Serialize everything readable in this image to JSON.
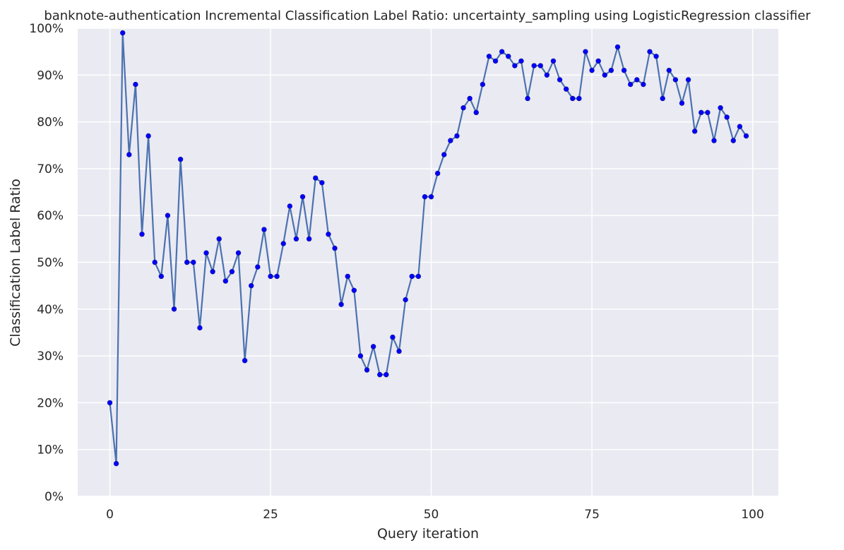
{
  "chart_data": {
    "type": "line",
    "title": "banknote-authentication Incremental Classification Label Ratio: uncertainty_sampling using LogisticRegression classifier",
    "xlabel": "Query iteration",
    "ylabel": "Classification Label Ratio",
    "xlim": [
      -5,
      104
    ],
    "ylim": [
      0,
      100
    ],
    "x_ticks": [
      0,
      25,
      50,
      75,
      100
    ],
    "y_ticks": [
      0,
      10,
      20,
      30,
      40,
      50,
      60,
      70,
      80,
      90,
      100
    ],
    "y_tick_format": "percent",
    "grid": true,
    "background_color": "#eaeaf2",
    "line_color": "#4c72b0",
    "marker_color": "#0000ff",
    "series": [
      {
        "x": [
          0,
          1,
          2,
          3,
          4,
          5,
          6,
          7,
          8,
          9,
          10,
          11,
          12,
          13,
          14,
          15,
          16,
          17,
          18,
          19,
          20,
          21,
          22,
          23,
          24,
          25,
          26,
          27,
          28,
          29,
          30,
          31,
          32,
          33,
          34,
          35,
          36,
          37,
          38,
          39,
          40,
          41,
          42,
          43,
          44,
          45,
          46,
          47,
          48,
          49,
          50,
          51,
          52,
          53,
          54,
          55,
          56,
          57,
          58,
          59,
          60,
          61,
          62,
          63,
          64,
          65,
          66,
          67,
          68,
          69,
          70,
          71,
          72,
          73,
          74,
          75,
          76,
          77,
          78,
          79,
          80,
          81,
          82,
          83,
          84,
          85,
          86,
          87,
          88,
          89,
          90,
          91,
          92,
          93,
          94,
          95,
          96,
          97,
          98,
          99
        ],
        "y": [
          20,
          7,
          99,
          73,
          88,
          56,
          77,
          50,
          47,
          60,
          40,
          72,
          50,
          50,
          36,
          52,
          48,
          55,
          46,
          48,
          52,
          29,
          45,
          49,
          57,
          47,
          47,
          54,
          62,
          55,
          64,
          55,
          68,
          67,
          56,
          53,
          41,
          47,
          44,
          30,
          27,
          32,
          26,
          26,
          34,
          31,
          42,
          47,
          47,
          64,
          64,
          69,
          73,
          76,
          77,
          83,
          85,
          82,
          88,
          94,
          93,
          95,
          94,
          92,
          93,
          85,
          92,
          92,
          90,
          93,
          89,
          87,
          85,
          85,
          95,
          91,
          93,
          90,
          91,
          96,
          91,
          88,
          89,
          88,
          95,
          94,
          85,
          91,
          89,
          84,
          89,
          78,
          82,
          82,
          76,
          83,
          81,
          76,
          79,
          77
        ]
      }
    ]
  }
}
